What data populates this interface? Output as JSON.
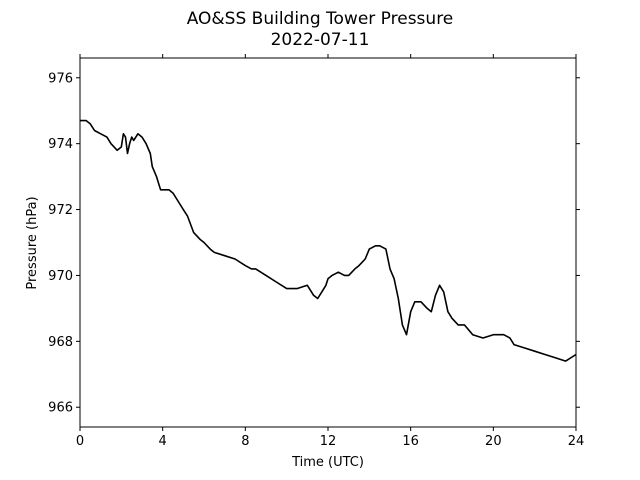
{
  "chart_data": {
    "type": "line",
    "title": "AO&SS Building Tower Pressure",
    "subtitle": "2022-07-11",
    "xlabel": "Time (UTC)",
    "ylabel": "Pressure (hPa)",
    "xlim": [
      0,
      24
    ],
    "ylim": [
      965.4,
      976.6
    ],
    "xticks": [
      0,
      4,
      8,
      12,
      16,
      20,
      24
    ],
    "yticks": [
      966,
      968,
      970,
      972,
      974,
      976
    ],
    "grid": false,
    "legend": "none",
    "series": [
      {
        "color": "#000000",
        "x": [
          0,
          0.3,
          0.5,
          0.7,
          1.0,
          1.3,
          1.5,
          1.8,
          2.0,
          2.1,
          2.2,
          2.3,
          2.4,
          2.5,
          2.6,
          2.8,
          3.0,
          3.2,
          3.4,
          3.5,
          3.7,
          3.9,
          4.1,
          4.3,
          4.5,
          4.8,
          5.0,
          5.2,
          5.5,
          5.8,
          6.0,
          6.3,
          6.5,
          7.0,
          7.5,
          8.0,
          8.3,
          8.5,
          9.0,
          9.5,
          10.0,
          10.3,
          10.5,
          11.0,
          11.3,
          11.5,
          11.7,
          11.9,
          12.0,
          12.2,
          12.5,
          12.8,
          13.0,
          13.3,
          13.5,
          13.8,
          14.0,
          14.3,
          14.5,
          14.8,
          15.0,
          15.2,
          15.4,
          15.6,
          15.8,
          16.0,
          16.2,
          16.5,
          16.8,
          17.0,
          17.2,
          17.4,
          17.6,
          17.8,
          18.0,
          18.3,
          18.6,
          19.0,
          19.5,
          20.0,
          20.5,
          20.8,
          21.0,
          21.5,
          22.0,
          22.5,
          23.0,
          23.5,
          24.0
        ],
        "values": [
          974.7,
          974.7,
          974.6,
          974.4,
          974.3,
          974.2,
          974.0,
          973.8,
          973.9,
          974.3,
          974.2,
          973.7,
          974.0,
          974.2,
          974.1,
          974.3,
          974.2,
          974.0,
          973.7,
          973.3,
          973.0,
          972.6,
          972.6,
          972.6,
          972.5,
          972.2,
          972.0,
          971.8,
          971.3,
          971.1,
          971.0,
          970.8,
          970.7,
          970.6,
          970.5,
          970.3,
          970.2,
          970.2,
          970.0,
          969.8,
          969.6,
          969.6,
          969.6,
          969.7,
          969.4,
          969.3,
          969.5,
          969.7,
          969.9,
          970.0,
          970.1,
          970.0,
          970.0,
          970.2,
          970.3,
          970.5,
          970.8,
          970.9,
          970.9,
          970.8,
          970.2,
          969.9,
          969.3,
          968.5,
          968.2,
          968.9,
          969.2,
          969.2,
          969.0,
          968.9,
          969.4,
          969.7,
          969.5,
          968.9,
          968.7,
          968.5,
          968.5,
          968.2,
          968.1,
          968.2,
          968.2,
          968.1,
          967.9,
          967.8,
          967.7,
          967.6,
          967.5,
          967.4,
          967.6
        ]
      }
    ]
  }
}
